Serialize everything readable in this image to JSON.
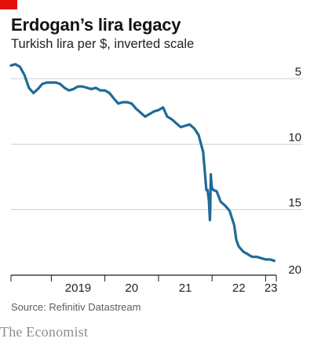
{
  "header": {
    "title": "Erdogan’s lira legacy",
    "subtitle": "Turkish lira per $, inverted scale"
  },
  "footer": {
    "source": "Source: Refinitiv Datastream",
    "brand": "The Economist"
  },
  "colors": {
    "accent": "#e3120b",
    "line": "#1e6a98",
    "grid": "#c9d0d5",
    "axis": "#1a1a1a"
  },
  "chart_data": {
    "type": "line",
    "title": "Erdogan’s lira legacy",
    "subtitle": "Turkish lira per $, inverted scale",
    "y_inverted": true,
    "ylim": [
      5,
      20
    ],
    "yticks": [
      5,
      10,
      15,
      20
    ],
    "xlim": [
      "2018-04-01",
      "2023-03-15"
    ],
    "x_tick_labels": [
      "2019",
      "20",
      "21",
      "22",
      "23"
    ],
    "grid": true,
    "series": [
      {
        "x": [
          "2018-04-01",
          "2018-05-01",
          "2018-06-01",
          "2018-07-01",
          "2018-08-01",
          "2018-09-01",
          "2018-10-01",
          "2018-11-01",
          "2018-12-01",
          "2019-01-01",
          "2019-02-01",
          "2019-03-01",
          "2019-04-01",
          "2019-05-01",
          "2019-06-01",
          "2019-07-01",
          "2019-08-01",
          "2019-09-01",
          "2019-10-01",
          "2019-11-01",
          "2019-12-01",
          "2020-01-01",
          "2020-02-01",
          "2020-03-01",
          "2020-04-01",
          "2020-05-01",
          "2020-06-01",
          "2020-07-01",
          "2020-08-01",
          "2020-09-01",
          "2020-10-01",
          "2020-11-01",
          "2020-12-01",
          "2021-01-01",
          "2021-02-01",
          "2021-03-01",
          "2021-04-01",
          "2021-05-01",
          "2021-06-01",
          "2021-07-01",
          "2021-08-01",
          "2021-09-01",
          "2021-10-01",
          "2021-11-01",
          "2021-11-23",
          "2021-12-01",
          "2021-12-10",
          "2021-12-17",
          "2021-12-20",
          "2021-12-23",
          "2021-12-30",
          "2022-01-10",
          "2022-02-01",
          "2022-03-01",
          "2022-04-01",
          "2022-05-01",
          "2022-06-01",
          "2022-06-15",
          "2022-07-01",
          "2022-08-01",
          "2022-09-01",
          "2022-10-01",
          "2022-11-01",
          "2022-12-01",
          "2023-01-01",
          "2023-02-01",
          "2023-03-01"
        ],
        "y": [
          4.0,
          3.9,
          4.1,
          4.7,
          5.7,
          6.1,
          5.8,
          5.4,
          5.3,
          5.3,
          5.3,
          5.4,
          5.7,
          5.9,
          5.8,
          5.6,
          5.6,
          5.7,
          5.8,
          5.7,
          5.9,
          5.9,
          6.1,
          6.5,
          6.9,
          6.8,
          6.8,
          6.9,
          7.3,
          7.6,
          7.9,
          7.7,
          7.5,
          7.4,
          7.2,
          7.9,
          8.1,
          8.4,
          8.7,
          8.6,
          8.5,
          8.8,
          9.3,
          10.6,
          13.5,
          13.5,
          14.3,
          15.8,
          14.8,
          12.3,
          13.3,
          13.5,
          13.6,
          14.4,
          14.7,
          15.1,
          16.2,
          17.3,
          17.8,
          18.2,
          18.4,
          18.6,
          18.6,
          18.7,
          18.8,
          18.8,
          18.9
        ]
      }
    ]
  }
}
